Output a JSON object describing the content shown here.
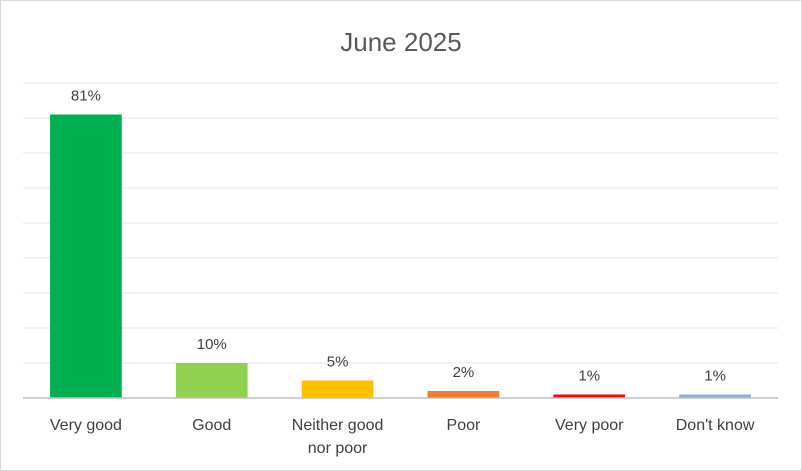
{
  "chart_data": {
    "type": "bar",
    "title": "June 2025",
    "xlabel": "",
    "ylabel": "",
    "categories": [
      [
        "Very good"
      ],
      [
        "Good"
      ],
      [
        "Neither good",
        "nor poor"
      ],
      [
        "Poor"
      ],
      [
        "Very poor"
      ],
      [
        "Don't know"
      ]
    ],
    "values": [
      81,
      10,
      5,
      2,
      1,
      1
    ],
    "data_labels": [
      "81%",
      "10%",
      "5%",
      "2%",
      "1%",
      "1%"
    ],
    "colors": [
      "#00b050",
      "#92d050",
      "#ffc000",
      "#ed7d31",
      "#e30f0f",
      "#8eaadb"
    ],
    "ylim": [
      0,
      90
    ],
    "grid": true,
    "legend": "none"
  }
}
